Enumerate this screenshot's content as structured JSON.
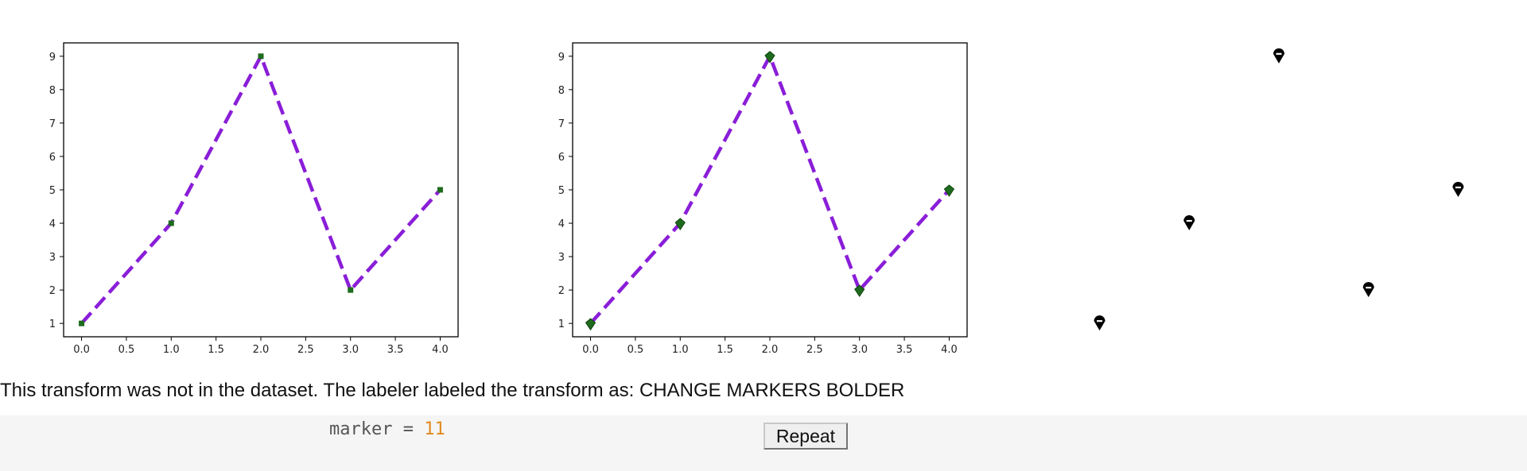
{
  "caption": "This transform was not in the dataset. The labeler labeled the transform as: CHANGE MARKERS BOLDER",
  "code": {
    "name": "marker",
    "operator": "=",
    "value": "11"
  },
  "repeat_button_label": "Repeat",
  "colors": {
    "line": "#8a1ed8",
    "marker_left": "#1e6b1e",
    "marker_middle": "#1e6b1e",
    "marker_right": "#000000"
  },
  "chart_data": [
    {
      "type": "line",
      "x": [
        0.0,
        1.0,
        2.0,
        3.0,
        4.0
      ],
      "y": [
        1,
        4,
        9,
        2,
        5
      ],
      "xlim": [
        -0.2,
        4.2
      ],
      "ylim": [
        0.6,
        9.4
      ],
      "xticks": [
        "0.0",
        "0.5",
        "1.0",
        "1.5",
        "2.0",
        "2.5",
        "3.0",
        "3.5",
        "4.0"
      ],
      "yticks": [
        "1",
        "2",
        "3",
        "4",
        "5",
        "6",
        "7",
        "8",
        "9"
      ],
      "line_style": "dashed",
      "marker": "square",
      "axes": true
    },
    {
      "type": "line",
      "x": [
        0.0,
        1.0,
        2.0,
        3.0,
        4.0
      ],
      "y": [
        1,
        4,
        9,
        2,
        5
      ],
      "xlim": [
        -0.2,
        4.2
      ],
      "ylim": [
        0.6,
        9.4
      ],
      "xticks": [
        "0.0",
        "0.5",
        "1.0",
        "1.5",
        "2.0",
        "2.5",
        "3.0",
        "3.5",
        "4.0"
      ],
      "yticks": [
        "1",
        "2",
        "3",
        "4",
        "5",
        "6",
        "7",
        "8",
        "9"
      ],
      "line_style": "dashed",
      "marker": "thin-diamond",
      "axes": true
    },
    {
      "type": "scatter",
      "x": [
        0.0,
        1.0,
        2.0,
        3.0,
        4.0
      ],
      "y": [
        1,
        4,
        9,
        2,
        5
      ],
      "xlim": [
        -0.2,
        4.2
      ],
      "ylim": [
        0.6,
        9.4
      ],
      "marker": "bold-marker-11",
      "axes": false
    }
  ]
}
